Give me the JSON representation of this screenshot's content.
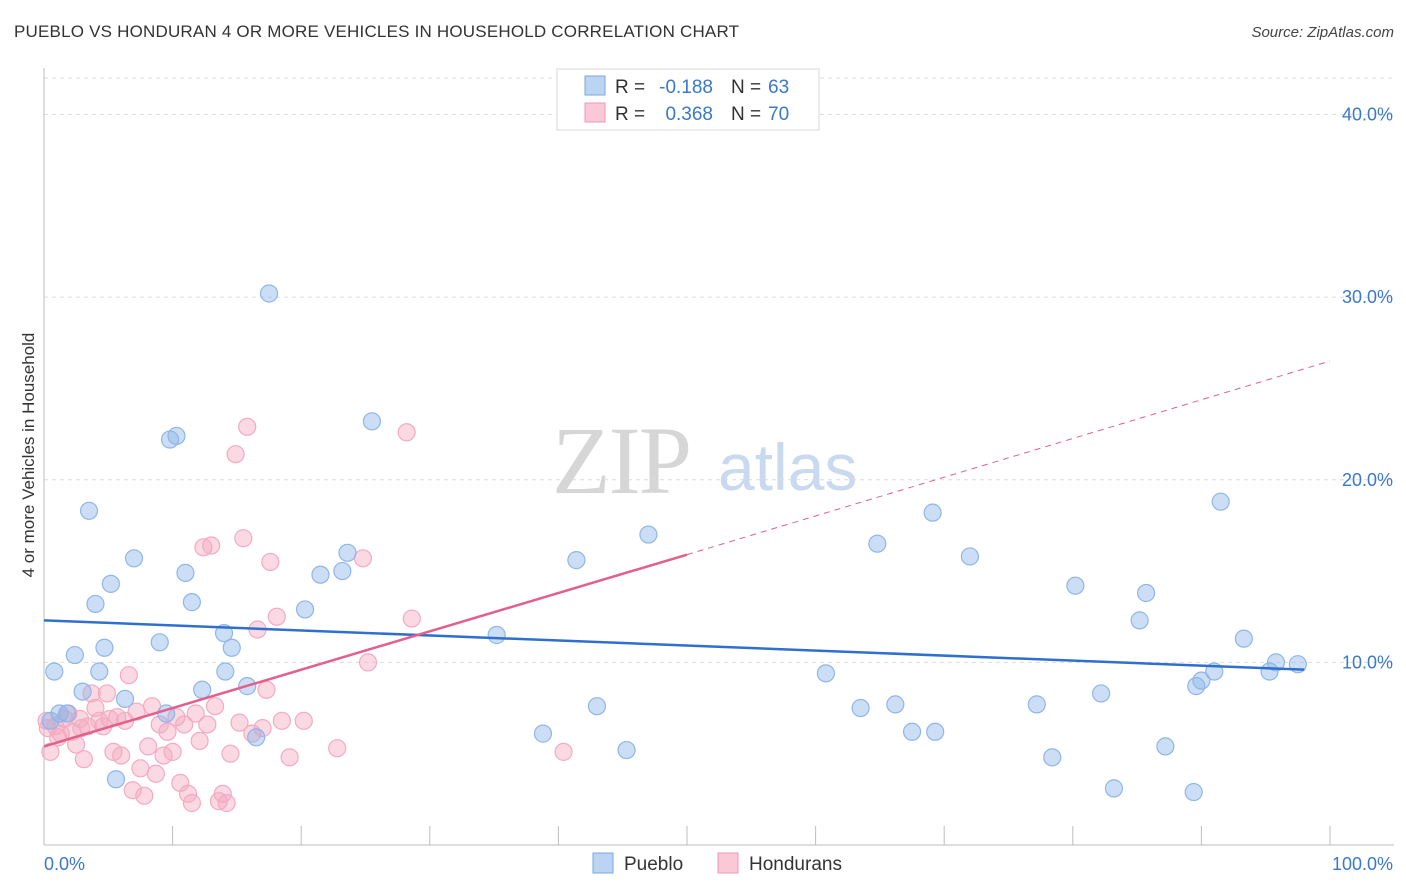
{
  "title": "PUEBLO VS HONDURAN 4 OR MORE VEHICLES IN HOUSEHOLD CORRELATION CHART",
  "source": "Source: ZipAtlas.com",
  "watermark": {
    "zip": "ZIP",
    "atlas": "atlas"
  },
  "legend_box": {
    "rows": [
      {
        "r_label": "R =",
        "r_value": "-0.188",
        "n_label": "N =",
        "n_value": "63"
      },
      {
        "r_label": "R =",
        "r_value": "0.368",
        "n_label": "N =",
        "n_value": "70"
      }
    ]
  },
  "chart_data": {
    "type": "scatter",
    "title": "PUEBLO VS HONDURAN 4 OR MORE VEHICLES IN HOUSEHOLD CORRELATION CHART",
    "xlabel": "",
    "ylabel": "4 or more Vehicles in Household",
    "xlim": [
      0,
      100
    ],
    "ylim": [
      0,
      42
    ],
    "x_tick_labels": [
      "0.0%",
      "100.0%"
    ],
    "y_ticks": [
      10,
      20,
      30,
      40
    ],
    "y_tick_labels": [
      "10.0%",
      "20.0%",
      "30.0%",
      "40.0%"
    ],
    "grid": "horizontal dashed",
    "legend_position": "bottom",
    "series": [
      {
        "name": "Pueblo",
        "color": "#8fb6e8",
        "line_color": "#2f6fd0",
        "r": -0.188,
        "n": 63,
        "trend": {
          "x": [
            0,
            98
          ],
          "y": [
            12.3,
            9.6
          ]
        },
        "points": [
          [
            0.5,
            6.8
          ],
          [
            0.8,
            9.5
          ],
          [
            1.2,
            7.2
          ],
          [
            1.8,
            7.2
          ],
          [
            2.4,
            10.4
          ],
          [
            3,
            8.4
          ],
          [
            3.5,
            18.3
          ],
          [
            4,
            13.2
          ],
          [
            4.3,
            9.5
          ],
          [
            4.7,
            10.8
          ],
          [
            5.2,
            14.3
          ],
          [
            5.6,
            3.6
          ],
          [
            6.3,
            8
          ],
          [
            7,
            15.7
          ],
          [
            9,
            11.1
          ],
          [
            9.5,
            7.2
          ],
          [
            9.8,
            22.2
          ],
          [
            10.3,
            22.4
          ],
          [
            11,
            14.9
          ],
          [
            11.5,
            13.3
          ],
          [
            12.3,
            8.5
          ],
          [
            14,
            11.6
          ],
          [
            14.1,
            9.5
          ],
          [
            14.6,
            10.8
          ],
          [
            15.8,
            8.7
          ],
          [
            16.5,
            5.9
          ],
          [
            17.5,
            30.2
          ],
          [
            20.3,
            12.9
          ],
          [
            21.5,
            14.8
          ],
          [
            23.2,
            15
          ],
          [
            23.6,
            16
          ],
          [
            25.5,
            23.2
          ],
          [
            35.2,
            11.5
          ],
          [
            38.8,
            6.1
          ],
          [
            41.4,
            15.6
          ],
          [
            43,
            7.6
          ],
          [
            45.3,
            5.2
          ],
          [
            47,
            17
          ],
          [
            60.8,
            9.4
          ],
          [
            63.5,
            7.5
          ],
          [
            64.8,
            16.5
          ],
          [
            66.2,
            7.7
          ],
          [
            67.5,
            6.2
          ],
          [
            69.1,
            18.2
          ],
          [
            69.3,
            6.2
          ],
          [
            72,
            15.8
          ],
          [
            77.2,
            7.7
          ],
          [
            78.4,
            4.8
          ],
          [
            80.2,
            14.2
          ],
          [
            82.2,
            8.3
          ],
          [
            83.2,
            3.1
          ],
          [
            85.2,
            12.3
          ],
          [
            85.7,
            13.8
          ],
          [
            87.2,
            5.4
          ],
          [
            89.4,
            2.9
          ],
          [
            89.6,
            8.7
          ],
          [
            90,
            9
          ],
          [
            91,
            9.5
          ],
          [
            91.5,
            18.8
          ],
          [
            93.3,
            11.3
          ],
          [
            95.3,
            9.5
          ],
          [
            95.8,
            10
          ],
          [
            97.5,
            9.9
          ]
        ]
      },
      {
        "name": "Hondurans",
        "color": "#f4aac2",
        "line_color": "#e2608c",
        "r": 0.368,
        "n": 70,
        "trend": {
          "x": [
            0,
            50
          ],
          "y": [
            5.4,
            15.9
          ]
        },
        "trend_ext": {
          "x": [
            50,
            100
          ],
          "y": [
            15.9,
            26.5
          ]
        },
        "points": [
          [
            0.2,
            6.8
          ],
          [
            0.5,
            5.1
          ],
          [
            0.9,
            6.5
          ],
          [
            1.3,
            6.1
          ],
          [
            1.6,
            6.9
          ],
          [
            1.9,
            7.2
          ],
          [
            2.2,
            6.2
          ],
          [
            2.5,
            5.5
          ],
          [
            2.8,
            6.9
          ],
          [
            3.1,
            4.7
          ],
          [
            3.4,
            6.5
          ],
          [
            3.7,
            8.3
          ],
          [
            4,
            7.5
          ],
          [
            4.3,
            6.8
          ],
          [
            4.6,
            6.5
          ],
          [
            4.9,
            8.3
          ],
          [
            5.1,
            6.9
          ],
          [
            5.4,
            5.1
          ],
          [
            5.7,
            7
          ],
          [
            6,
            4.9
          ],
          [
            6.3,
            6.8
          ],
          [
            6.6,
            9.3
          ],
          [
            6.9,
            3
          ],
          [
            7.2,
            7.3
          ],
          [
            7.5,
            4.2
          ],
          [
            7.8,
            2.7
          ],
          [
            8.1,
            5.4
          ],
          [
            8.4,
            7.6
          ],
          [
            8.7,
            3.9
          ],
          [
            9,
            6.6
          ],
          [
            9.3,
            4.9
          ],
          [
            9.6,
            6.2
          ],
          [
            10,
            5.1
          ],
          [
            10.3,
            7
          ],
          [
            10.6,
            3.4
          ],
          [
            10.9,
            6.6
          ],
          [
            11.2,
            2.8
          ],
          [
            11.5,
            2.3
          ],
          [
            11.8,
            7.2
          ],
          [
            12.1,
            5.7
          ],
          [
            12.4,
            16.3
          ],
          [
            12.7,
            6.6
          ],
          [
            13,
            16.4
          ],
          [
            13.3,
            7.6
          ],
          [
            13.6,
            2.4
          ],
          [
            13.9,
            2.8
          ],
          [
            14.2,
            2.3
          ],
          [
            14.5,
            5
          ],
          [
            14.9,
            21.4
          ],
          [
            15.2,
            6.7
          ],
          [
            15.5,
            16.8
          ],
          [
            15.8,
            22.9
          ],
          [
            16.2,
            6.1
          ],
          [
            16.6,
            11.8
          ],
          [
            17,
            6.4
          ],
          [
            17.3,
            8.5
          ],
          [
            17.6,
            15.5
          ],
          [
            18.1,
            12.5
          ],
          [
            18.5,
            6.8
          ],
          [
            19.1,
            4.8
          ],
          [
            20.2,
            6.8
          ],
          [
            22.8,
            5.3
          ],
          [
            24.8,
            15.7
          ],
          [
            25.2,
            10
          ],
          [
            28.2,
            22.6
          ],
          [
            28.6,
            12.4
          ],
          [
            40.4,
            5.1
          ],
          [
            0.3,
            6.4
          ],
          [
            1.1,
            5.9
          ],
          [
            2.9,
            6.4
          ]
        ]
      }
    ]
  }
}
